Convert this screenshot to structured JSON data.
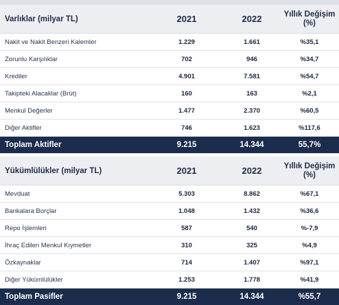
{
  "assets": {
    "title": "Varlıklar (milyar TL)",
    "col_2021": "2021",
    "col_2022": "2022",
    "col_change_line1": "Yıllık Değişim",
    "col_change_line2": "(%)",
    "rows": [
      {
        "label": "Nakit ve Nakit Benzeri Kalemler",
        "v2021": "1.229",
        "v2022": "1.661",
        "change": "%35,1"
      },
      {
        "label": "Zorunlu Karşılıklar",
        "v2021": "702",
        "v2022": "946",
        "change": "%34,7"
      },
      {
        "label": "Krediler",
        "v2021": "4.901",
        "v2022": "7.581",
        "change": "%54,7"
      },
      {
        "label": "Takipteki Alacaklar (Brüt)",
        "v2021": "160",
        "v2022": "163",
        "change": "%2,1"
      },
      {
        "label": "Menkul Değerler",
        "v2021": "1.477",
        "v2022": "2.370",
        "change": "%60,5"
      },
      {
        "label": "Diğer Aktifler",
        "v2021": "746",
        "v2022": "1.623",
        "change": "%117,6"
      }
    ],
    "total": {
      "label": "Toplam Aktifler",
      "v2021": "9.215",
      "v2022": "14.344",
      "change": "55,7%"
    }
  },
  "liabilities": {
    "title": "Yükümlülükler (milyar TL)",
    "col_2021": "2021",
    "col_2022": "2022",
    "col_change_line1": "Yıllık Değişim",
    "col_change_line2": "(%)",
    "rows": [
      {
        "label": "Mevduat",
        "v2021": "5.303",
        "v2022": "8.862",
        "change": "%67,1"
      },
      {
        "label": "Bankalara Borçlar",
        "v2021": "1.048",
        "v2022": "1.432",
        "change": "%36,6"
      },
      {
        "label": "Repo İşlemleri",
        "v2021": "587",
        "v2022": "540",
        "change": "%-7,9"
      },
      {
        "label": "İhraç Edilen Menkul Kıymetler",
        "v2021": "310",
        "v2022": "325",
        "change": "%4,9"
      },
      {
        "label": "Özkaynaklar",
        "v2021": "714",
        "v2022": "1.407",
        "change": "%97,1"
      },
      {
        "label": "Diğer Yükümlülükler",
        "v2021": "1.253",
        "v2022": "1.778",
        "change": "%41,9"
      }
    ],
    "total": {
      "label": "Toplam Pasifler",
      "v2021": "9.215",
      "v2022": "14.344",
      "change": "%55,7"
    }
  },
  "colors": {
    "header_bg": "#eceef2",
    "total_bg": "#1c2c4c",
    "text": "#1f2a44"
  }
}
